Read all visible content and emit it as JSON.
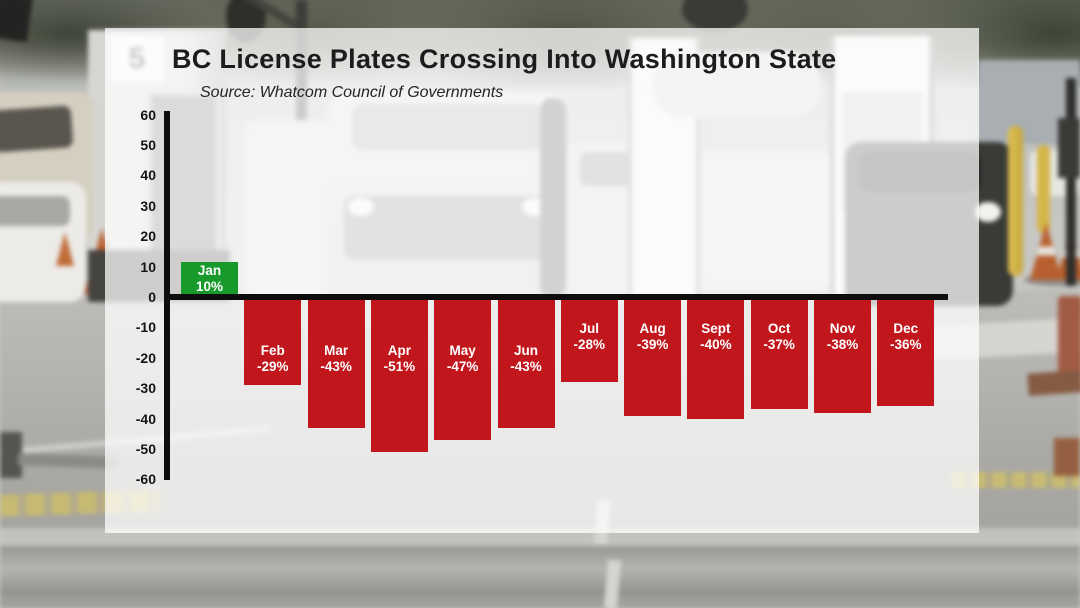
{
  "background": {
    "description": "blurred photo of vehicles queued at a border crossing checkpoint",
    "booth_sign_label": "5"
  },
  "panel_color": "rgba(255,255,255,0.74)",
  "chart_data": {
    "type": "bar",
    "title": "BC License Plates Crossing Into Washington State",
    "source": "Source: Whatcom Council of Governments",
    "categories": [
      "Jan",
      "Feb",
      "Mar",
      "Apr",
      "May",
      "Jun",
      "Jul",
      "Aug",
      "Sept",
      "Oct",
      "Nov",
      "Dec"
    ],
    "values": [
      10,
      -29,
      -43,
      -51,
      -47,
      -43,
      -28,
      -39,
      -40,
      -37,
      -38,
      -36
    ],
    "value_labels": [
      "10%",
      "-29%",
      "-43%",
      "-51%",
      "-47%",
      "-43%",
      "-28%",
      "-39%",
      "-40%",
      "-37%",
      "-38%",
      "-36%"
    ],
    "unit": "%",
    "ylim": [
      -60,
      60
    ],
    "ytick_step": 10,
    "yticks": [
      60,
      50,
      40,
      30,
      20,
      10,
      0,
      -10,
      -20,
      -30,
      -40,
      -50,
      -60
    ],
    "grid": false,
    "legend": false,
    "positive_color": "#17992b",
    "negative_color": "#c0161c",
    "axis_color": "#0d0d0d"
  }
}
